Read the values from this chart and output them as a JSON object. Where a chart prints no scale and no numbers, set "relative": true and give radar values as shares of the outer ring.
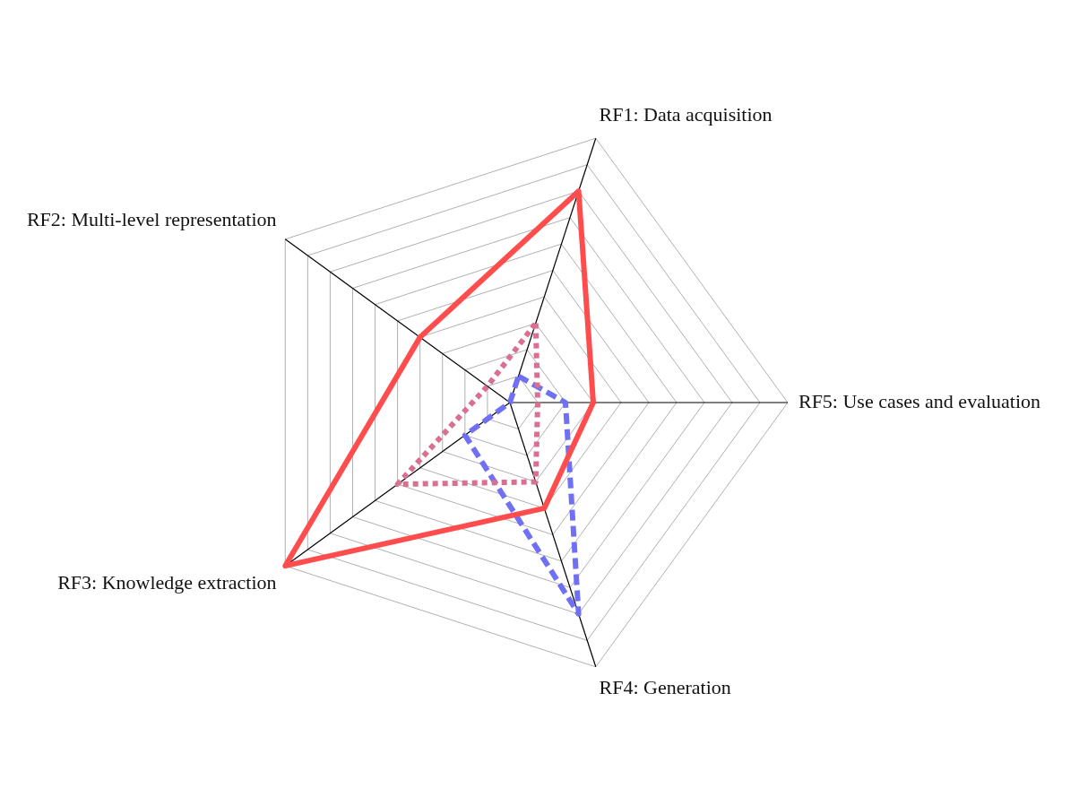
{
  "chart_data": {
    "type": "radar",
    "relative": true,
    "categories": [
      "RF1: Data acquisition",
      "RF5: Use cases and evaluation",
      "RF4: Generation",
      "RF3: Knowledge extraction",
      "RF2: Multi-level representation"
    ],
    "series": [
      {
        "color": "#ff4d4d",
        "line_style": "solid",
        "values": [
          0.8,
          0.3,
          0.4,
          1.0,
          0.4
        ]
      },
      {
        "color": "#d9708f",
        "line_style": "dotted",
        "values": [
          0.3,
          0.1,
          0.3,
          0.5,
          0.1
        ]
      },
      {
        "color": "#7070f5",
        "line_style": "dashed",
        "values": [
          0.1,
          0.2,
          0.8,
          0.2,
          0
        ]
      }
    ],
    "grid": true,
    "legend": false,
    "marker": "none"
  }
}
